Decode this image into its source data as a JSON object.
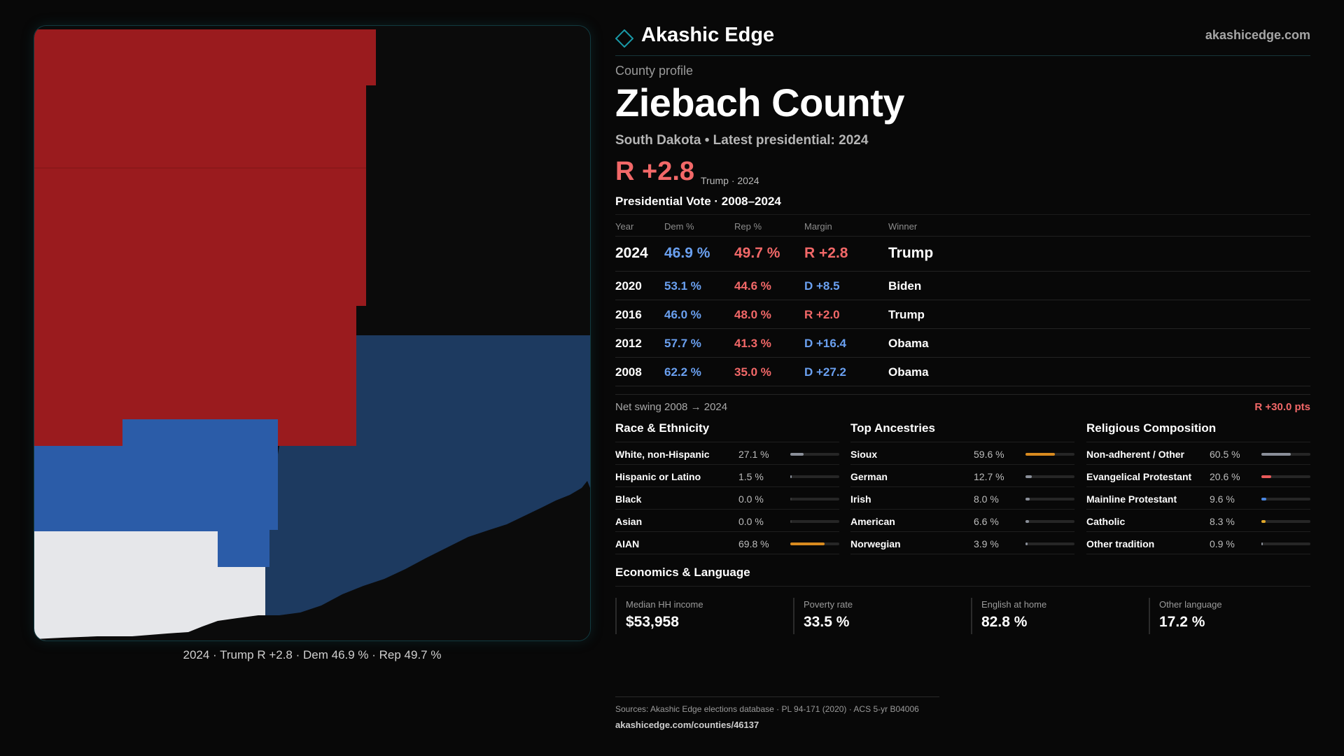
{
  "header": {
    "brand": "Akashic Edge",
    "site": "akashicedge.com"
  },
  "profile": {
    "eyebrow": "County profile",
    "title": "Ziebach County",
    "subtitle": "South Dakota • Latest presidential: 2024",
    "margin": "R +2.8",
    "margin_note": "Trump · 2024"
  },
  "pres": {
    "title": "Presidential Vote · 2008–2024",
    "headers": {
      "year": "Year",
      "dem": "Dem %",
      "rep": "Rep %",
      "margin": "Margin",
      "winner": "Winner"
    },
    "rows": [
      {
        "year": "2024",
        "dem": "46.9 %",
        "rep": "49.7 %",
        "margin": "R +2.8",
        "winner": "Trump",
        "party": "R"
      },
      {
        "year": "2020",
        "dem": "53.1 %",
        "rep": "44.6 %",
        "margin": "D +8.5",
        "winner": "Biden",
        "party": "D"
      },
      {
        "year": "2016",
        "dem": "46.0 %",
        "rep": "48.0 %",
        "margin": "R +2.0",
        "winner": "Trump",
        "party": "R"
      },
      {
        "year": "2012",
        "dem": "57.7 %",
        "rep": "41.3 %",
        "margin": "D +16.4",
        "winner": "Obama",
        "party": "D"
      },
      {
        "year": "2008",
        "dem": "62.2 %",
        "rep": "35.0 %",
        "margin": "D +27.2",
        "winner": "Obama",
        "party": "D"
      }
    ]
  },
  "swing": {
    "label": "Net swing 2008 → 2024",
    "value": "R +30.0 pts"
  },
  "race": {
    "title": "Race & Ethnicity",
    "rows": [
      {
        "label": "White, non-Hispanic",
        "pct": "27.1 %",
        "value": 27.1,
        "color": "#8a8f99"
      },
      {
        "label": "Hispanic or Latino",
        "pct": "1.5 %",
        "value": 1.5,
        "color": "#8a8f99"
      },
      {
        "label": "Black",
        "pct": "0.0 %",
        "value": 0.0,
        "color": "#8a8f99"
      },
      {
        "label": "Asian",
        "pct": "0.0 %",
        "value": 0.0,
        "color": "#8a8f99"
      },
      {
        "label": "AIAN",
        "pct": "69.8 %",
        "value": 69.8,
        "color": "#d88a1f"
      }
    ]
  },
  "ancestry": {
    "title": "Top Ancestries",
    "rows": [
      {
        "label": "Sioux",
        "pct": "59.6 %",
        "value": 59.6,
        "color": "#d88a1f"
      },
      {
        "label": "German",
        "pct": "12.7 %",
        "value": 12.7,
        "color": "#8a8f99"
      },
      {
        "label": "Irish",
        "pct": "8.0 %",
        "value": 8.0,
        "color": "#8a8f99"
      },
      {
        "label": "American",
        "pct": "6.6 %",
        "value": 6.6,
        "color": "#8a8f99"
      },
      {
        "label": "Norwegian",
        "pct": "3.9 %",
        "value": 3.9,
        "color": "#8a8f99"
      }
    ]
  },
  "religion": {
    "title": "Religious Composition",
    "rows": [
      {
        "label": "Non-adherent / Other",
        "pct": "60.5 %",
        "value": 60.5,
        "color": "#8a8f99"
      },
      {
        "label": "Evangelical Protestant",
        "pct": "20.6 %",
        "value": 20.6,
        "color": "#e85a5a"
      },
      {
        "label": "Mainline Protestant",
        "pct": "9.6 %",
        "value": 9.6,
        "color": "#4a86e0"
      },
      {
        "label": "Catholic",
        "pct": "8.3 %",
        "value": 8.3,
        "color": "#e0a82a"
      },
      {
        "label": "Other tradition",
        "pct": "0.9 %",
        "value": 0.9,
        "color": "#8a8f99"
      }
    ]
  },
  "economics": {
    "title": "Economics & Language",
    "items": [
      {
        "label": "Median HH income",
        "value": "$53,958"
      },
      {
        "label": "Poverty rate",
        "value": "33.5 %"
      },
      {
        "label": "English at home",
        "value": "82.8 %"
      },
      {
        "label": "Other language",
        "value": "17.2 %"
      }
    ]
  },
  "map": {
    "caption": "2024 · Trump R +2.8 · Dem 46.9 % · Rep 49.7 %"
  },
  "sources": {
    "line1": "Sources: Akashic Edge elections database · PL 94-171 (2020) · ACS 5-yr B04006",
    "line2": "akashicedge.com/counties/46137"
  },
  "colors": {
    "rep": "#9a1b1e",
    "dem": "#2b5ca8",
    "dem_dark": "#1d3a60",
    "neutral": "#e6e7ea",
    "accent": "#1a9aa8",
    "text_red": "#f26868",
    "text_blue": "#6aa0f0"
  }
}
